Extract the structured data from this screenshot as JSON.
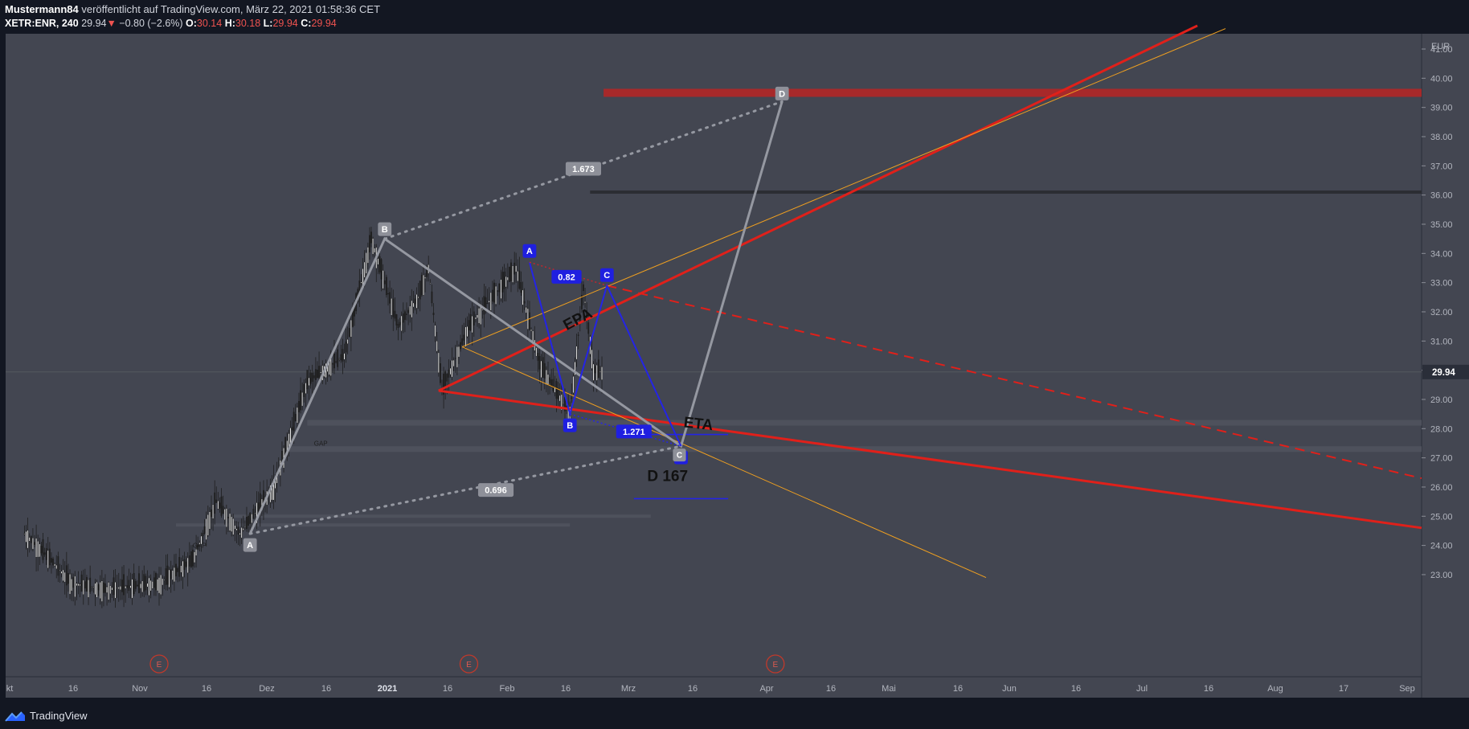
{
  "header": {
    "author": "Mustermann84",
    "published": " veröffentlicht auf TradingView.com, März 22, 2021 01:58:36 CET",
    "symbol": "XETR:ENR, 240",
    "last": "29.94",
    "change": "−0.80 (−2.6%)",
    "o_label": "O:",
    "o": "30.14",
    "h_label": "H:",
    "h": "30.18",
    "l_label": "L:",
    "l": "29.94",
    "c_label": "C:",
    "c": "29.94"
  },
  "footer": {
    "brand": "TradingView",
    "logo": "tradingview-logo-icon"
  },
  "colors": {
    "background": "#131722",
    "pane": "#434651",
    "candle": "#1e1e1e",
    "red_line": "#e0201a",
    "orange_line": "#f0a020",
    "blue_pattern": "#2424e6",
    "gray_pattern": "#9598a1"
  },
  "chart_data": {
    "type": "candlestick",
    "currency": "EUR",
    "ylim": [
      22.9,
      41.5
    ],
    "y_ticks": [
      23,
      24,
      25,
      26,
      27,
      28,
      29,
      30,
      31,
      32,
      33,
      34,
      35,
      36,
      37,
      38,
      39,
      40,
      41
    ],
    "y_tick_labels": [
      "23.00",
      "24.00",
      "25.00",
      "26.00",
      "27.00",
      "28.00",
      "29.00",
      "30.00",
      "31.00",
      "32.00",
      "33.00",
      "34.00",
      "35.00",
      "36.00",
      "37.00",
      "38.00",
      "39.00",
      "40.00",
      "41.00"
    ],
    "last_price": "29.94",
    "x_ticks": [
      "kt",
      "16",
      "Nov",
      "16",
      "Dez",
      "16",
      "2021",
      "16",
      "Feb",
      "16",
      "Mrz",
      "16",
      "Apr",
      "16",
      "Mai",
      "16",
      "Jun",
      "16",
      "Jul",
      "16",
      "Aug",
      "17",
      "Sep"
    ],
    "x_ticks_bold": [
      "2021"
    ],
    "price_path": [
      [
        "2020-10-01",
        24.4
      ],
      [
        "2020-10-08",
        23.6
      ],
      [
        "2020-10-15",
        22.7
      ],
      [
        "2020-10-25",
        22.5
      ],
      [
        "2020-11-10",
        22.7
      ],
      [
        "2020-11-20",
        23.5
      ],
      [
        "2020-11-27",
        25.5
      ],
      [
        "2020-12-04",
        24.4
      ],
      [
        "2020-12-14",
        26.0
      ],
      [
        "2020-12-24",
        29.6
      ],
      [
        "2021-01-04",
        30.5
      ],
      [
        "2021-01-12",
        34.5
      ],
      [
        "2021-01-20",
        31.5
      ],
      [
        "2021-01-26",
        32.5
      ],
      [
        "2021-01-29",
        33.5
      ],
      [
        "2021-02-02",
        29.3
      ],
      [
        "2021-02-10",
        31.5
      ],
      [
        "2021-02-24",
        33.5
      ],
      [
        "2021-03-03",
        30.2
      ],
      [
        "2021-03-12",
        28.5
      ],
      [
        "2021-03-16",
        32.8
      ],
      [
        "2021-03-19",
        30.0
      ],
      [
        "2021-03-22",
        29.94
      ]
    ],
    "events": [
      {
        "label": "E",
        "date": "2020-11-10"
      },
      {
        "label": "E",
        "date": "2021-02-10"
      },
      {
        "label": "E",
        "date": "2021-05-12"
      }
    ],
    "annotations": {
      "gap_labels": [
        {
          "text": "GAP",
          "date": "2020-11-20",
          "price": 24.0
        },
        {
          "text": "GAP",
          "date": "2020-12-26",
          "price": 27.5
        }
      ],
      "gray_abcd": [
        {
          "label": "A",
          "date": "2020-12-07",
          "price": 24.4
        },
        {
          "label": "B",
          "date": "2021-01-16",
          "price": 34.5
        },
        {
          "label": "C",
          "date": "2021-04-14",
          "price": 27.4
        },
        {
          "label": "D",
          "date": "2021-05-14",
          "price": 39.2
        }
      ],
      "gray_ratios": [
        {
          "text": "1.673",
          "date": "2021-03-16",
          "price": 36.9
        },
        {
          "text": "0.696",
          "date": "2021-02-18",
          "price": 25.9
        }
      ],
      "blue_abcd": [
        {
          "label": "A",
          "date": "2021-02-28",
          "price": 33.7
        },
        {
          "label": "B",
          "date": "2021-03-12",
          "price": 28.5
        },
        {
          "label": "C",
          "date": "2021-03-23",
          "price": 32.9
        },
        {
          "label": "C",
          "date": "2021-04-14",
          "price": 27.4
        }
      ],
      "blue_ratios": [
        {
          "text": "0.82",
          "date": "2021-03-11",
          "price": 33.2
        },
        {
          "text": "1.271",
          "date": "2021-03-31",
          "price": 27.9
        }
      ],
      "texts": [
        {
          "text": "EPA",
          "date": "2021-03-15",
          "price": 31.6
        },
        {
          "text": "ETA",
          "date": "2021-04-19",
          "price": 28.0
        },
        {
          "text": "D 167",
          "date": "2021-04-10",
          "price": 26.2
        }
      ],
      "horizontal_levels": [
        {
          "price": 39.5,
          "from": "2021-03-22",
          "color": "red-zone"
        },
        {
          "price": 36.1,
          "from": "2021-03-18",
          "color": "dark"
        },
        {
          "price": 27.8,
          "from": "2021-03-30",
          "to": "2021-04-28",
          "color": "blue"
        },
        {
          "price": 25.6,
          "from": "2021-03-31",
          "to": "2021-04-28",
          "color": "blue"
        }
      ]
    }
  }
}
